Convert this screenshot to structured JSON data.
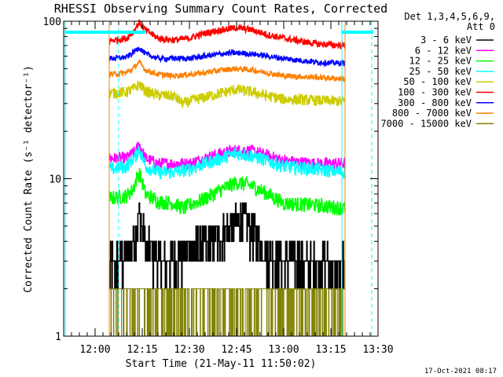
{
  "chart_data": {
    "type": "line",
    "title": "RHESSI Observing Summary Count Rates, Corrected",
    "xlabel": "Start Time (21-May-11 11:50:02)",
    "ylabel": "Corrected Count Rate (s⁻¹ detector⁻¹)",
    "ylim": [
      1,
      100
    ],
    "yscale": "log",
    "xlim_minutes_after_noon": [
      -10,
      90
    ],
    "x_ticks": [
      {
        "label": "12:00",
        "t": 0
      },
      {
        "label": "12:15",
        "t": 15
      },
      {
        "label": "12:30",
        "t": 30
      },
      {
        "label": "12:45",
        "t": 45
      },
      {
        "label": "13:00",
        "t": 60
      },
      {
        "label": "13:15",
        "t": 75
      },
      {
        "label": "13:30",
        "t": 90
      }
    ],
    "y_ticks": [
      {
        "label": "1",
        "v": 1
      },
      {
        "label": "10",
        "v": 10
      },
      {
        "label": "100",
        "v": 100
      }
    ],
    "legend_title": [
      "Det 1,3,4,5,6,9,",
      "Att 0"
    ],
    "legend_position": "right",
    "timestamp": "17-Oct-2021 08:17",
    "data_window_minutes": [
      4.5,
      79.5
    ],
    "series": [
      {
        "name": "3 - 6 keV",
        "color": "#000000",
        "points": [
          [
            4.5,
            2.8
          ],
          [
            10,
            3.2
          ],
          [
            13,
            4.5
          ],
          [
            14,
            6.0
          ],
          [
            16,
            3.8
          ],
          [
            20,
            3.0
          ],
          [
            25,
            3.0
          ],
          [
            30,
            3.5
          ],
          [
            35,
            3.8
          ],
          [
            40,
            4.3
          ],
          [
            44,
            5.0
          ],
          [
            47,
            5.8
          ],
          [
            50,
            4.5
          ],
          [
            55,
            3.2
          ],
          [
            60,
            3.0
          ],
          [
            70,
            2.9
          ],
          [
            79.5,
            2.8
          ]
        ]
      },
      {
        "name": "6 - 12 keV",
        "color": "#ff00ff",
        "points": [
          [
            4.5,
            13.5
          ],
          [
            10,
            13.5
          ],
          [
            13,
            15
          ],
          [
            14,
            16.5
          ],
          [
            16,
            13.5
          ],
          [
            20,
            12.5
          ],
          [
            25,
            12.5
          ],
          [
            30,
            12.5
          ],
          [
            35,
            13.5
          ],
          [
            40,
            14.5
          ],
          [
            45,
            15.2
          ],
          [
            50,
            15
          ],
          [
            55,
            14
          ],
          [
            60,
            13
          ],
          [
            70,
            12.5
          ],
          [
            79.5,
            12.5
          ]
        ]
      },
      {
        "name": "12 - 25 keV",
        "color": "#00ff00",
        "points": [
          [
            4.5,
            7.5
          ],
          [
            10,
            7.8
          ],
          [
            12,
            8.5
          ],
          [
            14,
            11
          ],
          [
            16,
            8
          ],
          [
            20,
            7.2
          ],
          [
            25,
            7.0
          ],
          [
            28,
            6.5
          ],
          [
            30,
            6.8
          ],
          [
            35,
            7.5
          ],
          [
            40,
            8.5
          ],
          [
            45,
            9.5
          ],
          [
            50,
            9.0
          ],
          [
            55,
            8
          ],
          [
            60,
            7
          ],
          [
            70,
            6.8
          ],
          [
            79.5,
            6.5
          ]
        ]
      },
      {
        "name": "25 - 50 keV",
        "color": "#00ffff",
        "points": [
          [
            4.5,
            11.5
          ],
          [
            10,
            12
          ],
          [
            13,
            14
          ],
          [
            14,
            15.5
          ],
          [
            16,
            12
          ],
          [
            20,
            11
          ],
          [
            25,
            11
          ],
          [
            30,
            11.5
          ],
          [
            35,
            12.5
          ],
          [
            40,
            13.5
          ],
          [
            45,
            14.5
          ],
          [
            50,
            14
          ],
          [
            55,
            13
          ],
          [
            60,
            12
          ],
          [
            70,
            11.5
          ],
          [
            79.5,
            11
          ]
        ]
      },
      {
        "name": "50 - 100 keV",
        "color": "#cccc00",
        "points": [
          [
            4.5,
            35
          ],
          [
            10,
            35.5
          ],
          [
            13,
            38
          ],
          [
            14,
            40
          ],
          [
            16,
            36
          ],
          [
            20,
            34
          ],
          [
            25,
            33.5
          ],
          [
            28,
            30
          ],
          [
            30,
            31
          ],
          [
            35,
            33
          ],
          [
            40,
            35
          ],
          [
            45,
            37
          ],
          [
            50,
            35.5
          ],
          [
            55,
            33.5
          ],
          [
            60,
            32
          ],
          [
            70,
            31.5
          ],
          [
            79.5,
            31
          ]
        ]
      },
      {
        "name": "100 - 300 keV",
        "color": "#ff0000",
        "points": [
          [
            4.5,
            75
          ],
          [
            10,
            78
          ],
          [
            12,
            85
          ],
          [
            14,
            98
          ],
          [
            16,
            88
          ],
          [
            20,
            78
          ],
          [
            25,
            76
          ],
          [
            30,
            78
          ],
          [
            35,
            84
          ],
          [
            40,
            88
          ],
          [
            45,
            91
          ],
          [
            50,
            88
          ],
          [
            55,
            82
          ],
          [
            60,
            78
          ],
          [
            70,
            72
          ],
          [
            79.5,
            70
          ]
        ]
      },
      {
        "name": "300 - 800 keV",
        "color": "#0000ff",
        "points": [
          [
            4.5,
            58
          ],
          [
            10,
            59
          ],
          [
            12,
            63
          ],
          [
            14,
            68
          ],
          [
            16,
            62
          ],
          [
            20,
            58
          ],
          [
            25,
            58
          ],
          [
            30,
            58
          ],
          [
            35,
            60
          ],
          [
            40,
            62
          ],
          [
            45,
            63
          ],
          [
            50,
            62
          ],
          [
            55,
            60
          ],
          [
            60,
            58
          ],
          [
            70,
            55
          ],
          [
            79.5,
            54
          ]
        ]
      },
      {
        "name": "800 - 7000 keV",
        "color": "#ff8000",
        "points": [
          [
            4.5,
            46
          ],
          [
            10,
            47
          ],
          [
            12,
            50
          ],
          [
            14,
            55
          ],
          [
            16,
            49
          ],
          [
            20,
            46
          ],
          [
            25,
            45
          ],
          [
            30,
            46
          ],
          [
            35,
            47
          ],
          [
            40,
            49
          ],
          [
            45,
            50
          ],
          [
            50,
            49
          ],
          [
            55,
            47
          ],
          [
            60,
            45
          ],
          [
            70,
            44
          ],
          [
            79.5,
            43
          ]
        ]
      },
      {
        "name": "7000 - 15000 keV",
        "color": "#808000",
        "points": [
          [
            4.5,
            2.0
          ],
          [
            10,
            2.0
          ],
          [
            20,
            2.0
          ],
          [
            30,
            2.0
          ],
          [
            40,
            2.0
          ],
          [
            50,
            2.0
          ],
          [
            60,
            2.0
          ],
          [
            70,
            2.0
          ],
          [
            79.5,
            2.0
          ]
        ]
      }
    ],
    "markers": [
      {
        "kind": "solid",
        "color": "#00ffff",
        "t": -9.5
      },
      {
        "kind": "solid",
        "color": "#00ffff",
        "t": 78.5
      },
      {
        "kind": "dashed",
        "color": "#00ffff",
        "t": 7.5
      },
      {
        "kind": "dashed",
        "color": "#00ffff",
        "t": 88
      },
      {
        "kind": "solid",
        "color": "#ff8000",
        "t": 4.5
      },
      {
        "kind": "solid",
        "color": "#ff8000",
        "t": 79.5
      }
    ]
  }
}
